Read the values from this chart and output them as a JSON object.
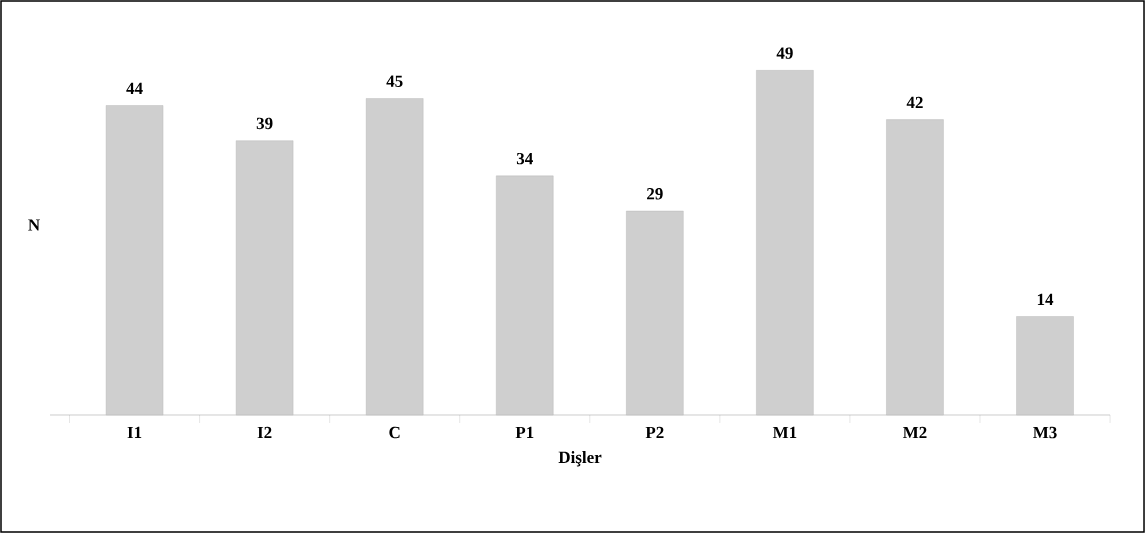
{
  "chart_data": {
    "type": "bar",
    "xlabel": "Dişler",
    "ylabel": "N",
    "categories": [
      "I1",
      "I2",
      "C",
      "P1",
      "P2",
      "M1",
      "M2",
      "M3"
    ],
    "values": [
      44,
      39,
      45,
      34,
      29,
      49,
      42,
      14
    ],
    "color": "#cfcfcf",
    "data_labels": true
  }
}
